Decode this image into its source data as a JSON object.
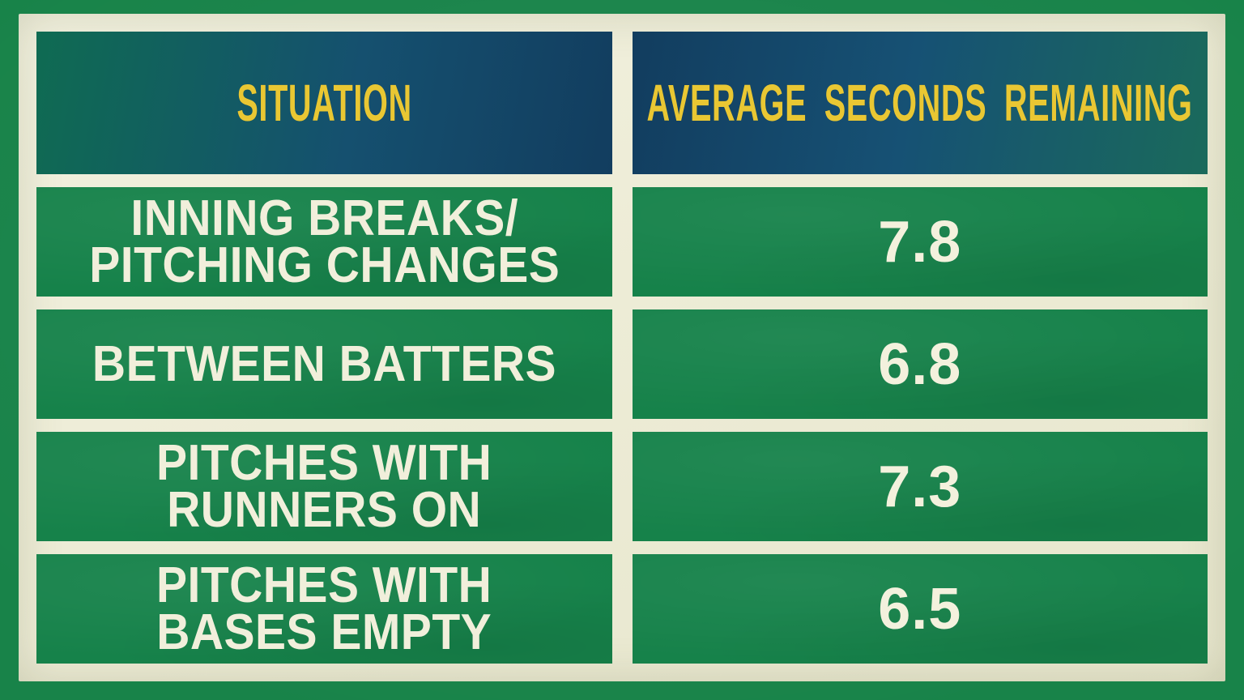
{
  "table": {
    "header": {
      "situation": "SITUATION",
      "average_seconds": "AVERAGE SECONDS REMAINING"
    },
    "rows": [
      {
        "lines": [
          "INNING BREAKS/",
          "PITCHING CHANGES"
        ],
        "value": "7.8"
      },
      {
        "lines": [
          "BETWEEN BATTERS"
        ],
        "value": "6.8"
      },
      {
        "lines": [
          "PITCHES WITH",
          "RUNNERS ON"
        ],
        "value": "7.3"
      },
      {
        "lines": [
          "PITCHES WITH",
          "BASES EMPTY"
        ],
        "value": "6.5"
      }
    ]
  },
  "colors": {
    "background_green": "#188349",
    "cell_green": "#16824a",
    "frame_cream": "#edecd6",
    "header_navy": "#15506f",
    "header_teal": "#0f6b52",
    "header_text_yellow": "#e9c733",
    "body_text_cream": "#f1efdb"
  },
  "chart_data": {
    "type": "table",
    "columns": [
      "SITUATION",
      "AVERAGE SECONDS REMAINING"
    ],
    "rows": [
      [
        "INNING BREAKS/PITCHING CHANGES",
        7.8
      ],
      [
        "BETWEEN BATTERS",
        6.8
      ],
      [
        "PITCHES WITH RUNNERS ON",
        7.3
      ],
      [
        "PITCHES WITH BASES EMPTY",
        6.5
      ]
    ]
  }
}
